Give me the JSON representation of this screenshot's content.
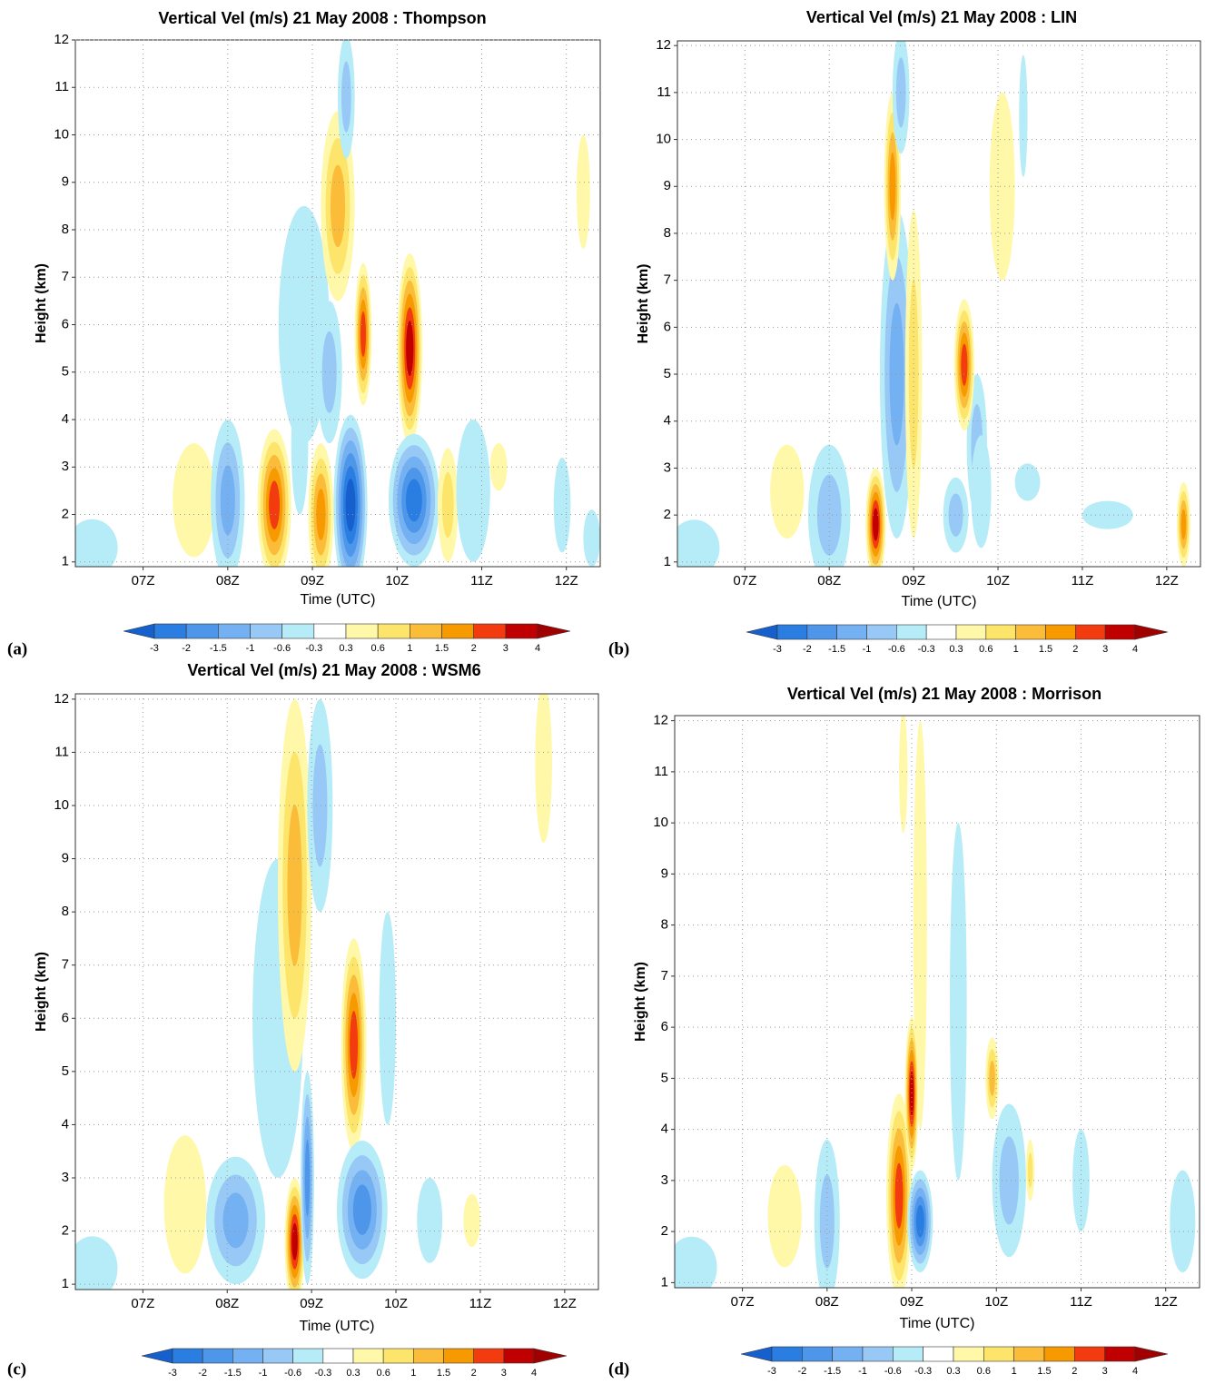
{
  "chart_data": [
    {
      "type": "contour",
      "title": "Vertical Vel (m/s) 21 May 2008 :  Thompson",
      "xlabel": "Time (UTC)",
      "ylabel": "Height (km)",
      "panel_label": "(a)",
      "xlim": [
        6.2,
        12.4
      ],
      "xticks": [
        {
          "value": 7,
          "label": "07Z"
        },
        {
          "value": 8,
          "label": "08Z"
        },
        {
          "value": 9,
          "label": "09Z"
        },
        {
          "value": 10,
          "label": "10Z"
        },
        {
          "value": 11,
          "label": "11Z"
        },
        {
          "value": 12,
          "label": "12Z"
        }
      ],
      "ylim": [
        0.9,
        12
      ],
      "yticks": [
        1,
        2,
        3,
        4,
        5,
        6,
        7,
        8,
        9,
        10,
        11,
        12
      ],
      "grid": true,
      "levels": [
        -3,
        -2,
        -1.5,
        -1,
        -0.6,
        -0.3,
        0.3,
        0.6,
        1,
        1.5,
        2,
        3,
        4
      ],
      "colors": [
        "#1560cc",
        "#2a7de1",
        "#4d96ea",
        "#74b1f2",
        "#98c9f6",
        "#b5ecf7",
        "#ffffff",
        "#fff8a8",
        "#fde46a",
        "#fbbc3a",
        "#f79a00",
        "#f23c10",
        "#c00000",
        "#a00000"
      ],
      "cells": [
        {
          "x": 6.4,
          "y": 1.3,
          "w": 0.3,
          "h": 0.6,
          "value": -0.4
        },
        {
          "x": 8.9,
          "y": 6.0,
          "w": 0.3,
          "h": 2.5,
          "value": -0.4
        },
        {
          "x": 7.6,
          "y": 2.3,
          "w": 0.25,
          "h": 1.2,
          "value": 0.5
        },
        {
          "x": 8.0,
          "y": 2.3,
          "w": 0.2,
          "h": 1.7,
          "value": -1.2
        },
        {
          "x": 8.55,
          "y": 2.2,
          "w": 0.2,
          "h": 1.6,
          "value": 3
        },
        {
          "x": 8.85,
          "y": 3.5,
          "w": 0.1,
          "h": 1.5,
          "value": -0.5
        },
        {
          "x": 9.1,
          "y": 2.0,
          "w": 0.15,
          "h": 1.5,
          "value": 1.8
        },
        {
          "x": 9.45,
          "y": 2.2,
          "w": 0.2,
          "h": 1.9,
          "value": -3.5
        },
        {
          "x": 9.6,
          "y": 5.8,
          "w": 0.1,
          "h": 1.5,
          "value": 3
        },
        {
          "x": 9.3,
          "y": 8.5,
          "w": 0.2,
          "h": 2,
          "value": 1.2
        },
        {
          "x": 9.4,
          "y": 10.8,
          "w": 0.1,
          "h": 1.3,
          "value": -0.8
        },
        {
          "x": 9.2,
          "y": 5,
          "w": 0.15,
          "h": 1.5,
          "value": -0.7
        },
        {
          "x": 10.15,
          "y": 5.5,
          "w": 0.15,
          "h": 2,
          "value": 3.5
        },
        {
          "x": 10.2,
          "y": 2.3,
          "w": 0.3,
          "h": 1.4,
          "value": -2.5
        },
        {
          "x": 10.6,
          "y": 2.2,
          "w": 0.12,
          "h": 1.2,
          "value": 0.9
        },
        {
          "x": 10.9,
          "y": 2.5,
          "w": 0.2,
          "h": 1.5,
          "value": -0.6
        },
        {
          "x": 11.2,
          "y": 3,
          "w": 0.1,
          "h": 0.5,
          "value": 0.5
        },
        {
          "x": 11.95,
          "y": 2.2,
          "w": 0.1,
          "h": 1,
          "value": -0.5
        },
        {
          "x": 12.2,
          "y": 8.8,
          "w": 0.08,
          "h": 1.2,
          "value": 0.4
        },
        {
          "x": 12.3,
          "y": 1.5,
          "w": 0.1,
          "h": 0.6,
          "value": -0.4
        }
      ]
    },
    {
      "type": "contour",
      "title": "Vertical Vel (m/s) 21 May 2008 : LIN",
      "xlabel": "Time (UTC)",
      "ylabel": "Height (km)",
      "panel_label": "(b)",
      "xlim": [
        6.2,
        12.4
      ],
      "xticks": [
        {
          "value": 7,
          "label": "07Z"
        },
        {
          "value": 8,
          "label": "08Z"
        },
        {
          "value": 9,
          "label": "09Z"
        },
        {
          "value": 10,
          "label": "10Z"
        },
        {
          "value": 11,
          "label": "11Z"
        },
        {
          "value": 12,
          "label": "12Z"
        }
      ],
      "ylim": [
        0.9,
        12.1
      ],
      "yticks": [
        1,
        2,
        3,
        4,
        5,
        6,
        7,
        8,
        9,
        10,
        11,
        12
      ],
      "grid": true,
      "levels": [
        -3,
        -2,
        -1.5,
        -1,
        -0.6,
        -0.3,
        0.3,
        0.6,
        1,
        1.5,
        2,
        3,
        4
      ],
      "colors": [
        "#1560cc",
        "#2a7de1",
        "#4d96ea",
        "#74b1f2",
        "#98c9f6",
        "#b5ecf7",
        "#ffffff",
        "#fff8a8",
        "#fde46a",
        "#fbbc3a",
        "#f79a00",
        "#f23c10",
        "#c00000",
        "#a00000"
      ],
      "cells": [
        {
          "x": 6.4,
          "y": 1.3,
          "w": 0.3,
          "h": 0.6,
          "value": -0.4
        },
        {
          "x": 7.5,
          "y": 2.5,
          "w": 0.2,
          "h": 1,
          "value": 0.5
        },
        {
          "x": 8.0,
          "y": 2.0,
          "w": 0.25,
          "h": 1.5,
          "value": -1
        },
        {
          "x": 8.8,
          "y": 5,
          "w": 0.2,
          "h": 3.5,
          "value": -1.2
        },
        {
          "x": 8.55,
          "y": 1.8,
          "w": 0.12,
          "h": 1.2,
          "value": 3.5
        },
        {
          "x": 8.75,
          "y": 9,
          "w": 0.1,
          "h": 2,
          "value": 1.8
        },
        {
          "x": 8.85,
          "y": 11,
          "w": 0.1,
          "h": 1.3,
          "value": -0.8
        },
        {
          "x": 9.0,
          "y": 5,
          "w": 0.1,
          "h": 3.5,
          "value": 0.8
        },
        {
          "x": 9.5,
          "y": 2,
          "w": 0.15,
          "h": 0.8,
          "value": -0.8
        },
        {
          "x": 9.75,
          "y": 3.5,
          "w": 0.12,
          "h": 1.5,
          "value": -0.8
        },
        {
          "x": 9.6,
          "y": 5.2,
          "w": 0.12,
          "h": 1.4,
          "value": 3
        },
        {
          "x": 9.8,
          "y": 2.5,
          "w": 0.12,
          "h": 1.2,
          "value": -0.6
        },
        {
          "x": 10.05,
          "y": 9,
          "w": 0.15,
          "h": 2,
          "value": 0.5
        },
        {
          "x": 10.35,
          "y": 2.7,
          "w": 0.15,
          "h": 0.4,
          "value": -0.4
        },
        {
          "x": 11.3,
          "y": 2,
          "w": 0.3,
          "h": 0.3,
          "value": -0.4
        },
        {
          "x": 12.2,
          "y": 1.8,
          "w": 0.08,
          "h": 0.9,
          "value": 2
        },
        {
          "x": 10.3,
          "y": 10.5,
          "w": 0.05,
          "h": 1.3,
          "value": -0.5
        }
      ]
    },
    {
      "type": "contour",
      "title": "Vertical Vel (m/s) 21 May 2008 : WSM6",
      "xlabel": "Time (UTC)",
      "ylabel": "Height (km)",
      "panel_label": "(c)",
      "xlim": [
        6.2,
        12.4
      ],
      "xticks": [
        {
          "value": 7,
          "label": "07Z"
        },
        {
          "value": 8,
          "label": "08Z"
        },
        {
          "value": 9,
          "label": "09Z"
        },
        {
          "value": 10,
          "label": "10Z"
        },
        {
          "value": 11,
          "label": "11Z"
        },
        {
          "value": 12,
          "label": "12Z"
        }
      ],
      "ylim": [
        0.9,
        12.1
      ],
      "yticks": [
        1,
        2,
        3,
        4,
        5,
        6,
        7,
        8,
        9,
        10,
        11,
        12
      ],
      "grid": true,
      "levels": [
        -3,
        -2,
        -1.5,
        -1,
        -0.6,
        -0.3,
        0.3,
        0.6,
        1,
        1.5,
        2,
        3,
        4
      ],
      "colors": [
        "#1560cc",
        "#2a7de1",
        "#4d96ea",
        "#74b1f2",
        "#98c9f6",
        "#b5ecf7",
        "#ffffff",
        "#fff8a8",
        "#fde46a",
        "#fbbc3a",
        "#f79a00",
        "#f23c10",
        "#c00000",
        "#a00000"
      ],
      "cells": [
        {
          "x": 6.4,
          "y": 1.3,
          "w": 0.3,
          "h": 0.6,
          "value": -0.4
        },
        {
          "x": 8.6,
          "y": 6,
          "w": 0.3,
          "h": 3,
          "value": -0.4
        },
        {
          "x": 7.5,
          "y": 2.5,
          "w": 0.25,
          "h": 1.3,
          "value": 0.5
        },
        {
          "x": 8.1,
          "y": 2.2,
          "w": 0.35,
          "h": 1.2,
          "value": -1.2
        },
        {
          "x": 8.8,
          "y": 1.8,
          "w": 0.12,
          "h": 1.2,
          "value": 3.5
        },
        {
          "x": 8.95,
          "y": 3,
          "w": 0.08,
          "h": 2,
          "value": -2
        },
        {
          "x": 8.8,
          "y": 8.5,
          "w": 0.2,
          "h": 3.5,
          "value": 1.2
        },
        {
          "x": 9.1,
          "y": 10,
          "w": 0.15,
          "h": 2,
          "value": -1
        },
        {
          "x": 9.5,
          "y": 5.5,
          "w": 0.15,
          "h": 2,
          "value": 3
        },
        {
          "x": 9.6,
          "y": 2.4,
          "w": 0.3,
          "h": 1.3,
          "value": -1.8
        },
        {
          "x": 10.4,
          "y": 2.2,
          "w": 0.15,
          "h": 0.8,
          "value": -0.6
        },
        {
          "x": 10.9,
          "y": 2.2,
          "w": 0.1,
          "h": 0.5,
          "value": 0.4
        },
        {
          "x": 11.75,
          "y": 10.8,
          "w": 0.1,
          "h": 1.5,
          "value": 0.5
        },
        {
          "x": 9.9,
          "y": 6,
          "w": 0.1,
          "h": 2,
          "value": -0.4
        }
      ]
    },
    {
      "type": "contour",
      "title": "Vertical Vel (m/s) 21 May 2008 :  Morrison",
      "xlabel": "Time (UTC)",
      "ylabel": "Height (km)",
      "panel_label": "(d)",
      "xlim": [
        6.2,
        12.4
      ],
      "xticks": [
        {
          "value": 7,
          "label": "07Z"
        },
        {
          "value": 8,
          "label": "08Z"
        },
        {
          "value": 9,
          "label": "09Z"
        },
        {
          "value": 10,
          "label": "10Z"
        },
        {
          "value": 11,
          "label": "11Z"
        },
        {
          "value": 12,
          "label": "12Z"
        }
      ],
      "ylim": [
        0.9,
        12.1
      ],
      "yticks": [
        1,
        2,
        3,
        4,
        5,
        6,
        7,
        8,
        9,
        10,
        11,
        12
      ],
      "grid": true,
      "levels": [
        -3,
        -2,
        -1.5,
        -1,
        -0.6,
        -0.3,
        0.3,
        0.6,
        1,
        1.5,
        2,
        3,
        4
      ],
      "colors": [
        "#1560cc",
        "#2a7de1",
        "#4d96ea",
        "#74b1f2",
        "#98c9f6",
        "#b5ecf7",
        "#ffffff",
        "#fff8a8",
        "#fde46a",
        "#fbbc3a",
        "#f79a00",
        "#f23c10",
        "#c00000",
        "#a00000"
      ],
      "cells": [
        {
          "x": 6.4,
          "y": 1.3,
          "w": 0.3,
          "h": 0.6,
          "value": -0.4
        },
        {
          "x": 9.55,
          "y": 6.5,
          "w": 0.1,
          "h": 3.5,
          "value": -0.6
        },
        {
          "x": 7.5,
          "y": 2.3,
          "w": 0.2,
          "h": 1,
          "value": 0.6
        },
        {
          "x": 8.0,
          "y": 2.2,
          "w": 0.15,
          "h": 1.6,
          "value": -1
        },
        {
          "x": 9.1,
          "y": 8,
          "w": 0.08,
          "h": 4,
          "value": 0.6
        },
        {
          "x": 8.85,
          "y": 2.7,
          "w": 0.15,
          "h": 2,
          "value": 3
        },
        {
          "x": 9.0,
          "y": 4.7,
          "w": 0.08,
          "h": 1.5,
          "value": 3.5
        },
        {
          "x": 9.1,
          "y": 2.2,
          "w": 0.15,
          "h": 1,
          "value": -3
        },
        {
          "x": 9.95,
          "y": 5,
          "w": 0.08,
          "h": 0.8,
          "value": 1.5
        },
        {
          "x": 10.15,
          "y": 3,
          "w": 0.2,
          "h": 1.5,
          "value": -0.8
        },
        {
          "x": 10.4,
          "y": 3.2,
          "w": 0.05,
          "h": 0.6,
          "value": 0.8
        },
        {
          "x": 11.0,
          "y": 3,
          "w": 0.1,
          "h": 1,
          "value": -0.4
        },
        {
          "x": 12.2,
          "y": 2.2,
          "w": 0.15,
          "h": 1,
          "value": -0.5
        },
        {
          "x": 8.9,
          "y": 11,
          "w": 0.05,
          "h": 1.2,
          "value": 0.4
        }
      ]
    }
  ]
}
